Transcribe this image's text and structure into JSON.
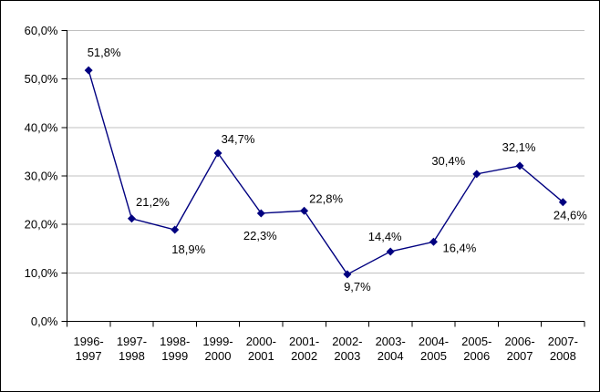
{
  "chart_data": {
    "type": "line",
    "title": "",
    "xlabel": "",
    "ylabel": "",
    "categories": [
      [
        "1996-",
        "1997"
      ],
      [
        "1997-",
        "1998"
      ],
      [
        "1998-",
        "1999"
      ],
      [
        "1999-",
        "2000"
      ],
      [
        "2000-",
        "2001"
      ],
      [
        "2001-",
        "2002"
      ],
      [
        "2002-",
        "2003"
      ],
      [
        "2003-",
        "2004"
      ],
      [
        "2004-",
        "2005"
      ],
      [
        "2005-",
        "2006"
      ],
      [
        "2006-",
        "2007"
      ],
      [
        "2007-",
        "2008"
      ]
    ],
    "series": [
      {
        "name": "",
        "values": [
          51.8,
          21.2,
          18.9,
          34.7,
          22.3,
          22.8,
          9.7,
          14.4,
          16.4,
          30.4,
          32.1,
          24.6
        ]
      }
    ],
    "point_labels": [
      "51,8%",
      "21,2%",
      "18,9%",
      "34,7%",
      "22,3%",
      "22,8%",
      "9,7%",
      "14,4%",
      "16,4%",
      "30,4%",
      "32,1%",
      "24,6%"
    ],
    "label_offsets": [
      [
        17,
        -15,
        "middle"
      ],
      [
        23,
        -14,
        "middle"
      ],
      [
        15,
        26,
        "middle"
      ],
      [
        22,
        -11,
        "middle"
      ],
      [
        -1,
        29,
        "middle"
      ],
      [
        24,
        -9,
        "middle"
      ],
      [
        11,
        18,
        "middle"
      ],
      [
        -6,
        -12,
        "middle"
      ],
      [
        10,
        11,
        "start"
      ],
      [
        -31,
        -10,
        "middle"
      ],
      [
        -1,
        -16,
        "middle"
      ],
      [
        8,
        19,
        "middle"
      ]
    ],
    "ylim": [
      0,
      60
    ],
    "ytick_step": 10,
    "ytick_labels": [
      "0,0%",
      "10,0%",
      "20,0%",
      "30,0%",
      "40,0%",
      "50,0%",
      "60,0%"
    ],
    "grid": true,
    "legend_position": "none",
    "colors": {
      "series": "#000080",
      "gridline": "#c0c0c0",
      "axis": "#000000",
      "text": "#000000",
      "background": "#ffffff",
      "border": "#000000"
    }
  }
}
